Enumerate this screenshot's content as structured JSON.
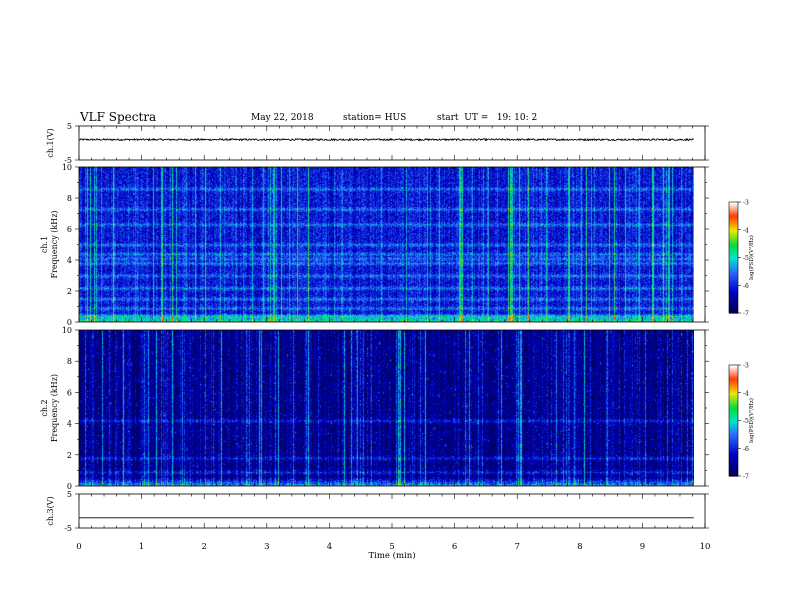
{
  "header": {
    "title": "VLF Spectra",
    "date": "May 22, 2018",
    "station": "station= HUS",
    "start": "start  UT =   19: 10: 2"
  },
  "chart_data": [
    {
      "type": "line",
      "panel": "ch1-waveform",
      "ylabel": "ch.1(V)",
      "ylim": [
        -5,
        5
      ],
      "yticks": [
        5,
        -5
      ],
      "xlim": [
        0,
        10
      ],
      "series": [
        {
          "description": "noisy trace around ~1 V",
          "mean": 1.0,
          "noise": 0.25
        }
      ]
    },
    {
      "type": "heatmap",
      "panel": "ch1-spectrogram",
      "ylabel": "ch.1\nFrequency (kHz)",
      "ylim": [
        0,
        10
      ],
      "yticks": [
        0,
        2,
        4,
        6,
        8,
        10
      ],
      "xlim": [
        0,
        9.82
      ],
      "colorbar": {
        "label": "log(PSD)(V²/Hz)",
        "range": [
          -7,
          -3
        ],
        "ticks": [
          -3,
          -4,
          -5,
          -6,
          -7
        ]
      },
      "bands_khz": [
        0.4,
        0.9,
        1.5,
        2.2,
        3.0,
        3.8,
        4.1,
        4.4,
        5.0,
        6.3,
        7.3,
        8.6
      ],
      "background_level": -6.1
    },
    {
      "type": "heatmap",
      "panel": "ch2-spectrogram",
      "ylabel": "ch.2\nFrequency (kHz)",
      "ylim": [
        0,
        10
      ],
      "yticks": [
        0,
        2,
        4,
        6,
        8,
        10
      ],
      "xlim": [
        0,
        9.82
      ],
      "colorbar": {
        "label": "log(PSD)(V²/Hz)",
        "range": [
          -7,
          -3
        ],
        "ticks": [
          -3,
          -4,
          -5,
          -6,
          -7
        ]
      },
      "bands_khz": [
        0.9,
        1.8,
        4.2
      ],
      "background_level": -6.6
    },
    {
      "type": "line",
      "panel": "ch3-waveform",
      "ylabel": "ch.3(V)",
      "ylim": [
        -5,
        5
      ],
      "yticks": [
        5,
        -5
      ],
      "xlim": [
        0,
        10
      ],
      "series": [
        {
          "description": "flat line",
          "mean": -2.0,
          "noise": 0
        }
      ]
    }
  ],
  "xaxis": {
    "label": "Time (min)",
    "ticks": [
      0,
      1,
      2,
      3,
      4,
      5,
      6,
      7,
      8,
      9,
      10
    ]
  },
  "colors": {
    "frame": "#000000",
    "background": "#ffffff"
  }
}
